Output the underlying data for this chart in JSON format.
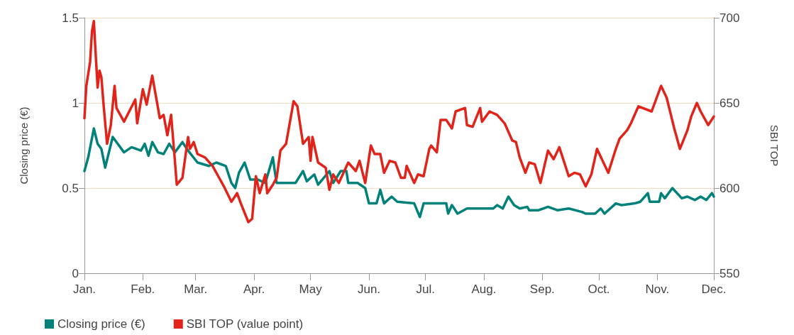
{
  "chart_data": {
    "type": "line",
    "ylabel": "Closing price (€)",
    "y2label": "SBI TOP",
    "xlim": [
      "--01-01",
      "--12-01"
    ],
    "xticks": [
      {
        "value": "--01-01",
        "label": "Jan."
      },
      {
        "value": "--02-01",
        "label": "Feb."
      },
      {
        "value": "--03-01",
        "label": "Mar."
      },
      {
        "value": "--04-01",
        "label": "Apr."
      },
      {
        "value": "--05-01",
        "label": "May"
      },
      {
        "value": "--06-01",
        "label": "Jun."
      },
      {
        "value": "--07-01",
        "label": "Jul."
      },
      {
        "value": "--08-01",
        "label": "Aug."
      },
      {
        "value": "--09-01",
        "label": "Sep."
      },
      {
        "value": "--10-01",
        "label": "Oct."
      },
      {
        "value": "--11-01",
        "label": "Nov."
      },
      {
        "value": "--12-01",
        "label": "Dec."
      }
    ],
    "ylim": [
      0,
      1.5
    ],
    "yticks": [
      0,
      0.5,
      1,
      1.5
    ],
    "y2lim": [
      550,
      700
    ],
    "y2ticks": [
      550,
      600,
      650,
      700
    ],
    "grid": "y",
    "legend": "bottom left",
    "marker": "none",
    "line_style": "solid",
    "series": [
      {
        "name": "Closing price (€)",
        "color": "#00827a",
        "x": [
          "--01-01",
          "--01-03",
          "--01-06",
          "--01-08",
          "--01-10",
          "--01-12",
          "--01-16",
          "--01-22",
          "--01-26",
          "--01-31",
          "--02-02",
          "--02-04",
          "--02-06",
          "--02-09",
          "--02-12",
          "--02-15",
          "--02-18",
          "--02-22",
          "--02-25",
          "--03-02",
          "--03-08",
          "--03-12",
          "--03-17",
          "--03-20",
          "--03-22",
          "--03-24",
          "--03-27",
          "--03-30",
          "--04-03",
          "--04-07",
          "--04-11",
          "--04-12",
          "--04-13",
          "--04-23",
          "--04-27",
          "--04-29",
          "--05-03",
          "--05-05",
          "--05-11",
          "--05-13",
          "--05-17",
          "--05-20",
          "--05-21",
          "--05-26",
          "--05-30",
          "--06-01",
          "--06-05",
          "--06-07",
          "--06-09",
          "--06-13",
          "--06-16",
          "--06-25",
          "--06-28",
          "--06-30",
          "--07-12",
          "--07-13",
          "--07-15",
          "--07-18",
          "--07-23",
          "--07-28",
          "--08-06",
          "--08-08",
          "--08-11",
          "--08-14",
          "--08-17",
          "--08-20",
          "--08-24",
          "--08-25",
          "--08-30",
          "--09-04",
          "--09-09",
          "--09-15",
          "--09-22",
          "--09-24",
          "--09-29",
          "--10-02",
          "--10-04",
          "--10-10",
          "--10-13",
          "--10-20",
          "--10-23",
          "--10-27",
          "--10-28",
          "--11-02",
          "--11-03",
          "--11-05",
          "--11-09",
          "--11-14",
          "--11-17",
          "--11-21",
          "--11-24",
          "--11-27",
          "--11-30",
          "--12-01"
        ],
        "values": [
          0.6,
          0.68,
          0.85,
          0.76,
          0.73,
          0.62,
          0.8,
          0.71,
          0.74,
          0.72,
          0.76,
          0.69,
          0.77,
          0.71,
          0.7,
          0.76,
          0.71,
          0.77,
          0.72,
          0.65,
          0.63,
          0.65,
          0.63,
          0.53,
          0.5,
          0.59,
          0.65,
          0.55,
          0.55,
          0.53,
          0.68,
          0.6,
          0.53,
          0.53,
          0.6,
          0.54,
          0.58,
          0.52,
          0.6,
          0.53,
          0.6,
          0.6,
          0.53,
          0.53,
          0.5,
          0.41,
          0.41,
          0.49,
          0.41,
          0.45,
          0.42,
          0.41,
          0.33,
          0.41,
          0.41,
          0.35,
          0.4,
          0.35,
          0.38,
          0.38,
          0.38,
          0.4,
          0.38,
          0.45,
          0.4,
          0.38,
          0.39,
          0.37,
          0.37,
          0.39,
          0.37,
          0.38,
          0.36,
          0.35,
          0.35,
          0.38,
          0.35,
          0.41,
          0.4,
          0.41,
          0.42,
          0.47,
          0.42,
          0.42,
          0.47,
          0.44,
          0.5,
          0.44,
          0.45,
          0.43,
          0.45,
          0.43,
          0.47,
          0.45
        ]
      },
      {
        "name": "SBI TOP (value point)",
        "color": "#e2231a",
        "axis": "y2",
        "x": [
          "--01-01",
          "--01-02",
          "--01-04",
          "--01-05",
          "--01-06",
          "--01-07",
          "--01-08",
          "--01-09",
          "--01-10",
          "--01-11",
          "--01-13",
          "--01-15",
          "--01-17",
          "--01-18",
          "--01-22",
          "--01-28",
          "--01-29",
          "--02-01",
          "--02-03",
          "--02-06",
          "--02-10",
          "--02-12",
          "--02-14",
          "--02-16",
          "--02-18",
          "--02-19",
          "--02-22",
          "--02-25",
          "--02-26",
          "--02-28",
          "--03-02",
          "--03-06",
          "--03-10",
          "--03-14",
          "--03-16",
          "--03-20",
          "--03-23",
          "--03-25",
          "--03-29",
          "--03-31",
          "--04-02",
          "--04-04",
          "--04-07",
          "--04-08",
          "--04-11",
          "--04-13",
          "--04-15",
          "--04-18",
          "--04-22",
          "--04-24",
          "--04-27",
          "--04-30",
          "--05-01",
          "--05-02",
          "--05-05",
          "--05-09",
          "--05-11",
          "--05-13",
          "--05-16",
          "--05-21",
          "--05-25",
          "--05-27",
          "--05-30",
          "--06-02",
          "--06-04",
          "--06-07",
          "--06-09",
          "--06-12",
          "--06-15",
          "--06-18",
          "--06-20",
          "--06-21",
          "--06-25",
          "--06-27",
          "--06-30",
          "--07-03",
          "--07-04",
          "--07-07",
          "--07-09",
          "--07-12",
          "--07-15",
          "--07-17",
          "--07-22",
          "--07-23",
          "--07-26",
          "--07-30",
          "--07-31",
          "--08-04",
          "--08-08",
          "--08-12",
          "--08-16",
          "--08-18",
          "--08-20",
          "--08-23",
          "--08-25",
          "--08-28",
          "--08-31",
          "--09-04",
          "--09-07",
          "--09-10",
          "--09-15",
          "--09-18",
          "--09-21",
          "--09-24",
          "--09-27",
          "--09-30",
          "--10-06",
          "--10-10",
          "--10-12",
          "--10-16",
          "--10-18",
          "--10-22",
          "--10-29",
          "--11-03",
          "--11-06",
          "--11-10",
          "--11-13",
          "--11-17",
          "--11-19",
          "--11-22",
          "--11-24",
          "--11-28",
          "--12-01"
        ],
        "values": [
          641,
          660,
          674,
          692,
          698,
          678,
          659,
          669,
          665,
          651,
          626,
          637,
          660,
          647,
          639,
          652,
          638,
          658,
          649,
          666,
          641,
          643,
          631,
          643,
          616,
          602,
          606,
          630,
          623,
          627,
          620,
          618,
          613,
          605,
          601,
          592,
          597,
          591,
          580,
          582,
          607,
          597,
          608,
          597,
          602,
          606,
          622,
          626,
          651,
          648,
          626,
          630,
          616,
          630,
          615,
          612,
          599,
          608,
          603,
          615,
          610,
          616,
          603,
          625,
          620,
          620,
          609,
          616,
          615,
          606,
          606,
          613,
          603,
          608,
          607,
          623,
          625,
          621,
          640,
          640,
          635,
          645,
          647,
          637,
          636,
          647,
          639,
          645,
          643,
          638,
          628,
          627,
          618,
          609,
          615,
          614,
          603,
          622,
          617,
          624,
          607,
          609,
          608,
          601,
          608,
          623,
          609,
          623,
          629,
          634,
          638,
          648,
          645,
          660,
          653,
          635,
          623,
          634,
          642,
          650,
          645,
          637,
          642
        ]
      }
    ]
  }
}
